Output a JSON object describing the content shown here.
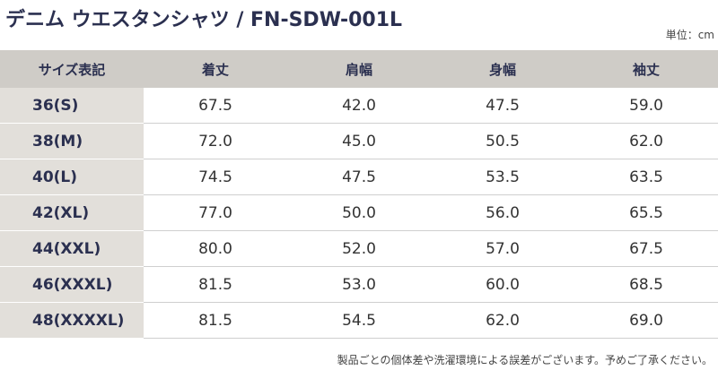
{
  "header": {
    "title": "デニム ウエスタンシャツ / FN-SDW-001L",
    "unit": "単位：cm"
  },
  "table": {
    "columns": [
      "サイズ表記",
      "着丈",
      "肩幅",
      "身幅",
      "袖丈"
    ],
    "rows": [
      [
        "36(S)",
        "67.5",
        "42.0",
        "47.5",
        "59.0"
      ],
      [
        "38(M)",
        "72.0",
        "45.0",
        "50.5",
        "62.0"
      ],
      [
        "40(L)",
        "74.5",
        "47.5",
        "53.5",
        "63.5"
      ],
      [
        "42(XL)",
        "77.0",
        "50.0",
        "56.0",
        "65.5"
      ],
      [
        "44(XXL)",
        "80.0",
        "52.0",
        "57.0",
        "67.5"
      ],
      [
        "46(XXXL)",
        "81.5",
        "53.0",
        "60.0",
        "68.5"
      ],
      [
        "48(XXXXL)",
        "81.5",
        "54.5",
        "62.0",
        "69.0"
      ]
    ]
  },
  "footnote": "製品ごとの個体差や洗濯環境による誤差がございます。予めご了承ください。"
}
